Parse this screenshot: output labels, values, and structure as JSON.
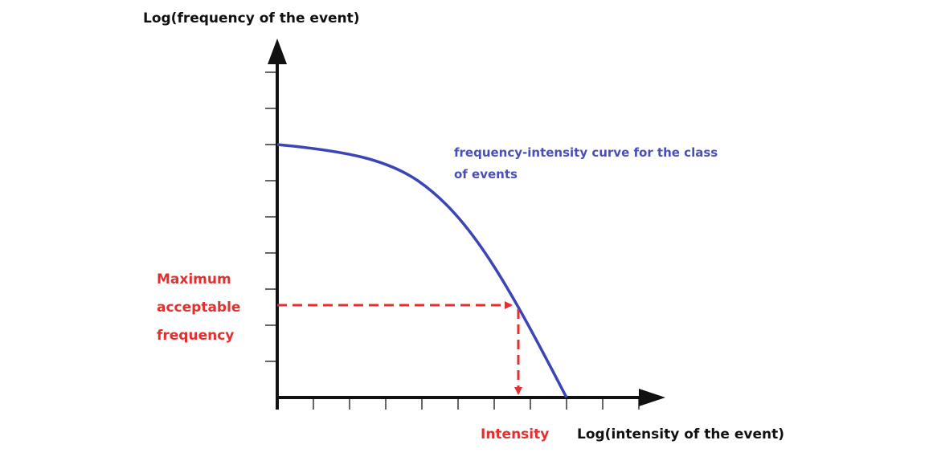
{
  "y_axis_label": "Log(frequency of the event)",
  "x_axis_label": "Log(intensity of the event)",
  "curve_label": [
    "frequency-intensity curve for the class",
    "of events"
  ],
  "threshold_label": [
    "Maximum",
    "acceptable",
    "frequency"
  ],
  "intensity_label": "Intensity"
}
